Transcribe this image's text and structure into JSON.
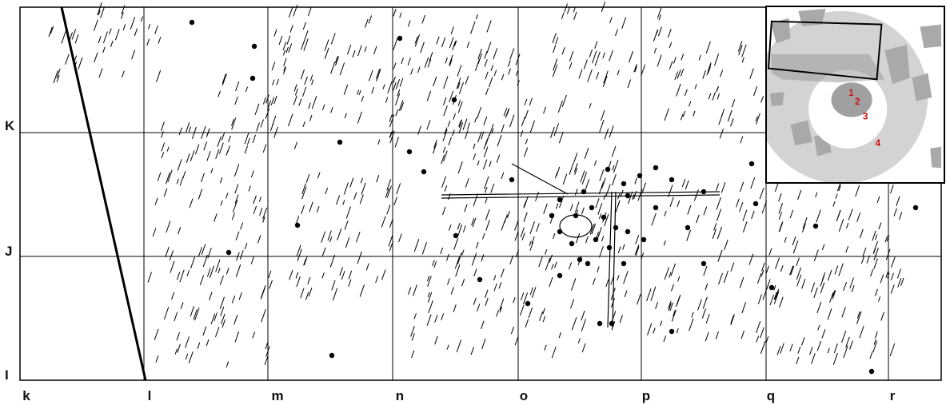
{
  "map": {
    "column_labels": [
      "k",
      "l",
      "m",
      "n",
      "o",
      "p",
      "q",
      "r"
    ],
    "row_labels": [
      "K",
      "J",
      "I"
    ]
  },
  "inset": {
    "labels": [
      "1",
      "2",
      "3",
      "4"
    ],
    "label_color": "#cc1111",
    "ring_color": "#d3d3d3",
    "patch_color": "#a9a9a9"
  },
  "colors": {
    "ink": "#000000",
    "paper": "#ffffff"
  }
}
